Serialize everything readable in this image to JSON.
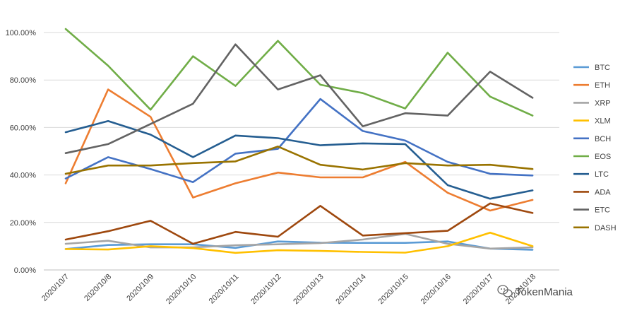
{
  "chart_data": {
    "type": "line",
    "categories": [
      "2020/10/7",
      "2020/10/8",
      "2020/10/9",
      "2020/10/10",
      "2020/10/11",
      "2020/10/12",
      "2020/10/13",
      "2020/10/14",
      "2020/10/15",
      "2020/10/16",
      "2020/10/17",
      "2020/10/18"
    ],
    "y_ticks": [
      "0.00%",
      "20.00%",
      "40.00%",
      "60.00%",
      "80.00%",
      "100.00%"
    ],
    "ylim": [
      0,
      100
    ],
    "y_unit": "percent",
    "grid": "horizontal",
    "legend_position": "right",
    "series": [
      {
        "name": "BTC",
        "color": "#5B9BD5",
        "values": [
          8.8,
          10.5,
          10.8,
          10.8,
          9.3,
          12.0,
          11.5,
          11.4,
          11.4,
          12.0,
          9.0,
          8.5
        ]
      },
      {
        "name": "ETH",
        "color": "#ED7D31",
        "values": [
          36.5,
          76.0,
          64.5,
          30.5,
          36.5,
          41.0,
          39.0,
          39.0,
          45.5,
          32.5,
          25.0,
          29.5
        ]
      },
      {
        "name": "XRP",
        "color": "#A5A5A5",
        "values": [
          11.0,
          12.3,
          9.5,
          9.5,
          10.4,
          10.8,
          11.3,
          12.8,
          15.2,
          11.0,
          9.0,
          9.5
        ]
      },
      {
        "name": "XLM",
        "color": "#FFC000",
        "values": [
          8.8,
          8.6,
          10.0,
          9.2,
          7.2,
          8.3,
          8.0,
          7.6,
          7.3,
          10.0,
          15.7,
          10.0
        ]
      },
      {
        "name": "BCH",
        "color": "#4472C4",
        "values": [
          38.5,
          47.5,
          42.5,
          37.0,
          49.0,
          51.0,
          72.0,
          58.5,
          54.5,
          45.5,
          40.5,
          39.8
        ]
      },
      {
        "name": "EOS",
        "color": "#70AD47",
        "values": [
          101.5,
          86.0,
          67.5,
          90.0,
          77.5,
          96.5,
          78.0,
          74.5,
          68.0,
          91.5,
          73.0,
          65.0
        ]
      },
      {
        "name": "LTC",
        "color": "#255E91",
        "values": [
          58.0,
          62.7,
          57.0,
          47.5,
          56.6,
          55.5,
          52.5,
          53.3,
          53.0,
          35.7,
          30.0,
          33.5
        ]
      },
      {
        "name": "ADA",
        "color": "#9E480E",
        "values": [
          12.8,
          16.3,
          20.7,
          11.0,
          16.0,
          14.0,
          27.0,
          14.5,
          15.5,
          16.5,
          28.0,
          24.0
        ]
      },
      {
        "name": "ETC",
        "color": "#636363",
        "values": [
          49.2,
          53.0,
          61.5,
          70.0,
          95.0,
          76.0,
          82.0,
          60.5,
          66.0,
          65.0,
          83.5,
          72.5
        ]
      },
      {
        "name": "DASH",
        "color": "#997300",
        "values": [
          40.5,
          44.0,
          44.0,
          45.0,
          45.7,
          52.0,
          44.3,
          42.3,
          45.0,
          44.0,
          44.3,
          42.5
        ]
      }
    ]
  },
  "watermark": {
    "text": "TokenMania",
    "icon": "wechat-icon"
  }
}
